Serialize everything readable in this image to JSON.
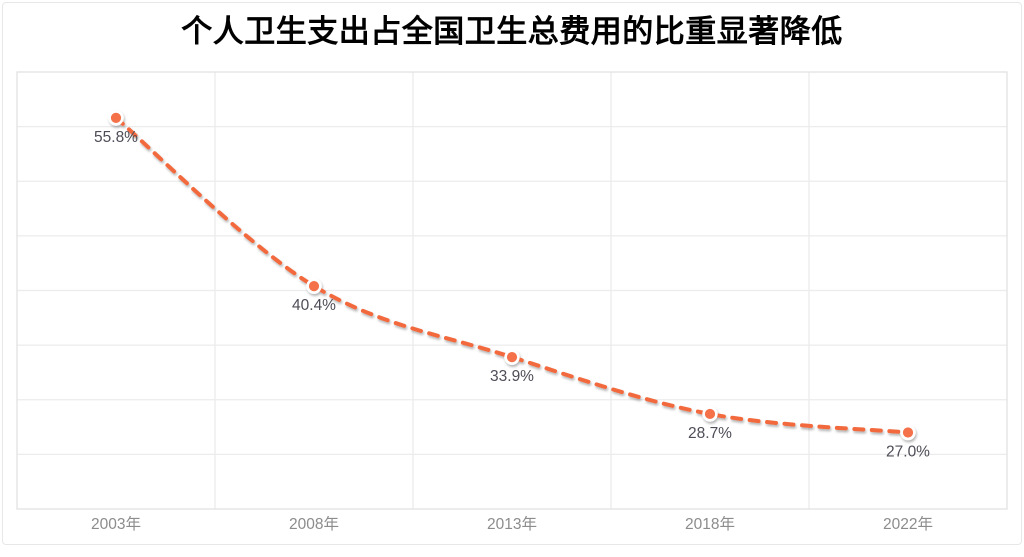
{
  "page": {
    "background": "#ffffff",
    "card_border_color": "#e7e7e7"
  },
  "chart_data": {
    "type": "line",
    "title": "个人卫生支出占全国卫生总费用的比重显著降低",
    "title_color": "#000000",
    "categories": [
      "2003年",
      "2008年",
      "2013年",
      "2018年",
      "2022年"
    ],
    "values": [
      55.8,
      40.4,
      33.9,
      28.7,
      27.0
    ],
    "point_labels": [
      "55.8%",
      "40.4%",
      "33.9%",
      "28.7%",
      "27.0%"
    ],
    "xlabel": "",
    "ylabel": "",
    "ylim": [
      20,
      60
    ],
    "y_gridline_step": 5,
    "grid": true,
    "y_axis_labels_visible": false,
    "legend_position": "none",
    "line": {
      "color": "#f2693c",
      "style": "dashed",
      "smooth": true,
      "width": 4
    },
    "marker": {
      "fill": "#f4714a",
      "ring": "#ffffff",
      "radius": 6.4
    },
    "point_label_color": "#4d4d57",
    "axis_label_color": "#8c8c8c",
    "gridline_color": "#ececec",
    "plot_border_color": "#e2e2e2"
  }
}
